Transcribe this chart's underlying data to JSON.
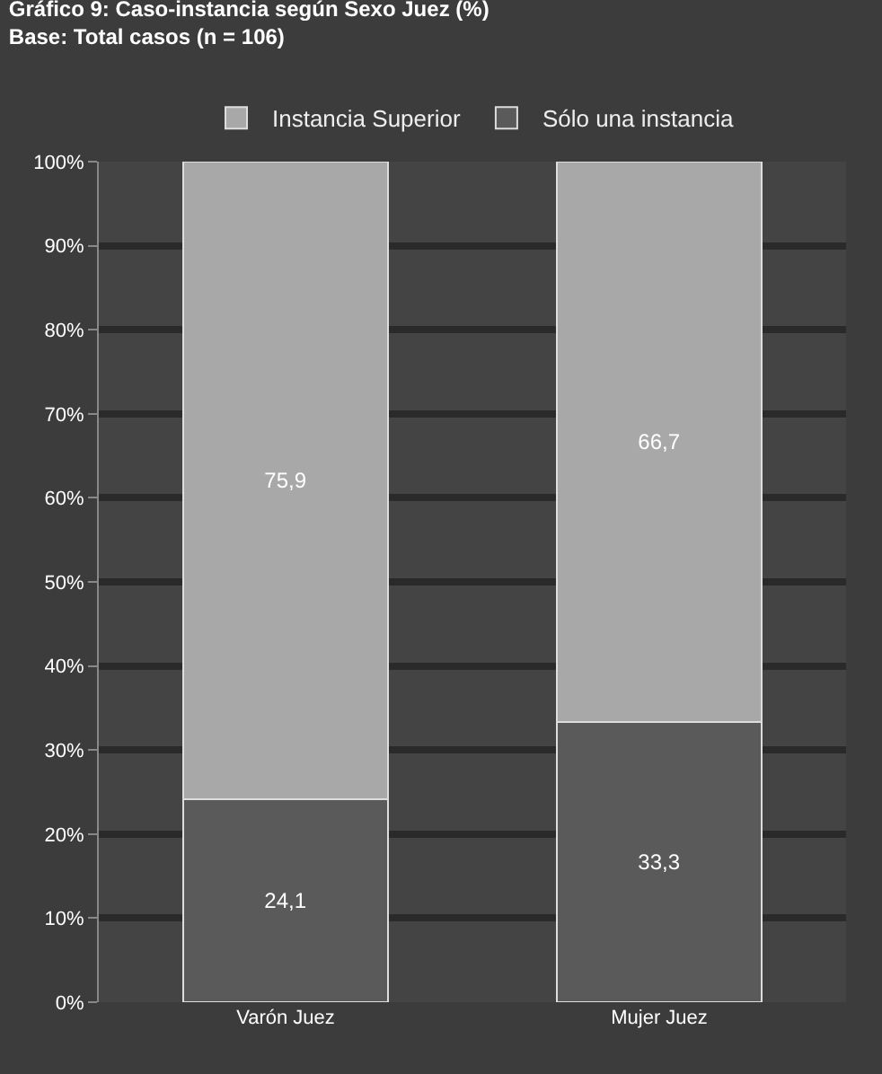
{
  "chart_data": {
    "type": "bar",
    "stacked": true,
    "title": "Gráfico 9: Caso-instancia según Sexo Juez (%)",
    "subtitle": "Base: Total casos (n = 106)",
    "categories": [
      "Varón Juez",
      "Mujer Juez"
    ],
    "series": [
      {
        "name": "Sólo una instancia",
        "color": "#5a5a5a",
        "values": [
          24.1,
          33.3
        ],
        "value_labels": [
          "24,1",
          "33,3"
        ]
      },
      {
        "name": "Instancia Superior",
        "color": "#a8a8a8",
        "values": [
          75.9,
          66.7
        ],
        "value_labels": [
          "75,9",
          "66,7"
        ]
      }
    ],
    "ylim": [
      0,
      100
    ],
    "yticks": [
      {
        "value": 0,
        "label": "0%"
      },
      {
        "value": 10,
        "label": "10%"
      },
      {
        "value": 20,
        "label": "20%"
      },
      {
        "value": 30,
        "label": "30%"
      },
      {
        "value": 40,
        "label": "40%"
      },
      {
        "value": 50,
        "label": "50%"
      },
      {
        "value": 60,
        "label": "60%"
      },
      {
        "value": 70,
        "label": "70%"
      },
      {
        "value": 80,
        "label": "80%"
      },
      {
        "value": 90,
        "label": "90%"
      },
      {
        "value": 100,
        "label": "100%"
      }
    ],
    "grid": "y",
    "legend": "top"
  }
}
